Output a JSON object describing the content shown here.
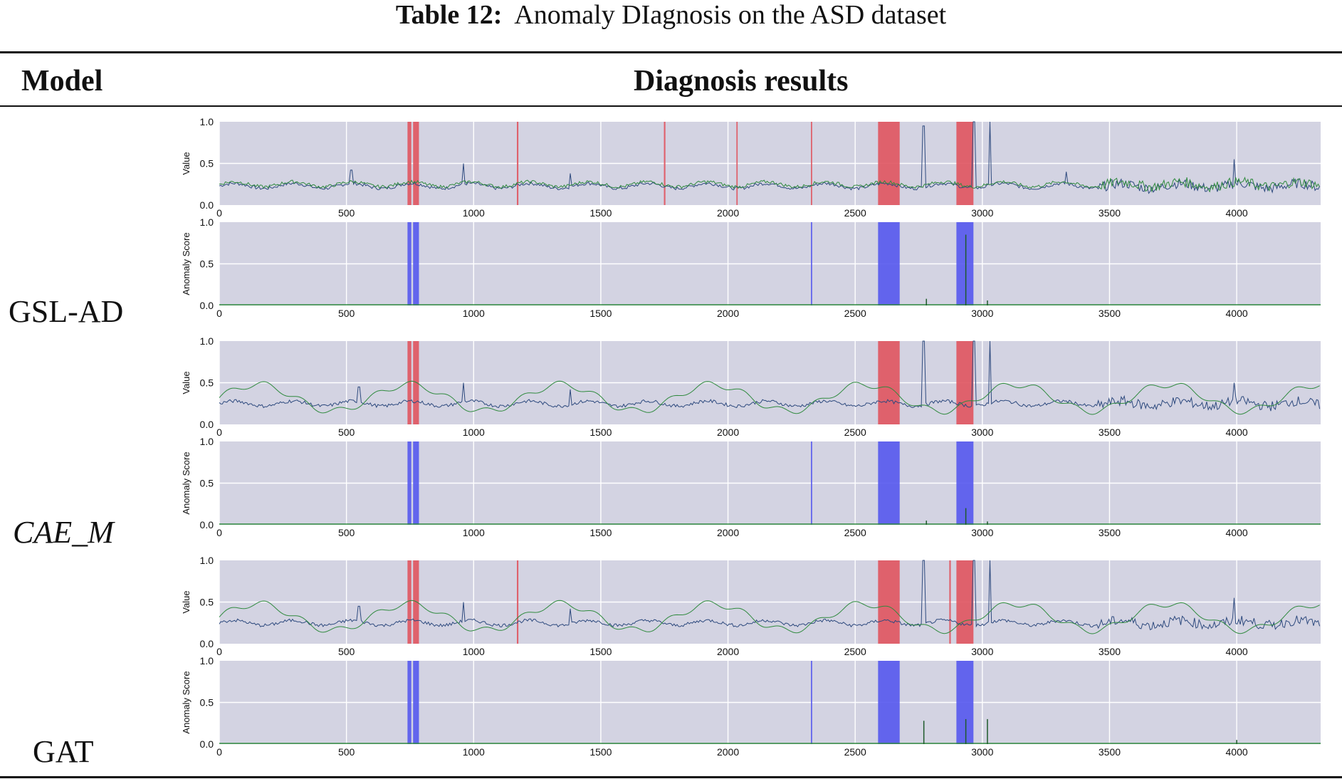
{
  "caption": {
    "bold": "Table 12:",
    "text": "Anomaly DIagnosis on the ASD dataset"
  },
  "headers": {
    "model": "Model",
    "results": "Diagnosis results"
  },
  "models": [
    {
      "name": "GSL-AD",
      "italic": false
    },
    {
      "name": "CAE_M",
      "italic": true
    },
    {
      "name": "GAT",
      "italic": false
    }
  ],
  "colors": {
    "panel_bg": "#d3d3e2",
    "grid": "#ffffff",
    "truth_band": "#e0545f",
    "pred_band": "#5558ee",
    "series_blue": "#2e4a7e",
    "series_green": "#2f8a3e"
  },
  "chart_data": [
    {
      "type": "line",
      "model": "GSL-AD",
      "panel": "value",
      "ylabel": "Value",
      "xlim": [
        0,
        4330
      ],
      "ylim": [
        0,
        1
      ],
      "xticks": [
        0,
        500,
        1000,
        1500,
        2000,
        2500,
        3000,
        3500,
        4000
      ],
      "yticks": [
        "0.0",
        "0.5",
        "1.0"
      ],
      "bands": [
        [
          740,
          755
        ],
        [
          762,
          785
        ],
        [
          1170,
          1176
        ],
        [
          1748,
          1754
        ],
        [
          2033,
          2038
        ],
        [
          2326,
          2331
        ],
        [
          2590,
          2675
        ],
        [
          2898,
          2965
        ]
      ],
      "series": [
        {
          "name": "input",
          "color": "#2e4a7e",
          "baseline": 0.23
        },
        {
          "name": "reconstruction",
          "color": "#2f8a3e",
          "baseline": 0.25
        }
      ],
      "spikes": [
        [
          520,
          0.42
        ],
        [
          960,
          0.5
        ],
        [
          1380,
          0.38
        ],
        [
          2770,
          0.95
        ],
        [
          2965,
          1.0
        ],
        [
          3030,
          1.0
        ],
        [
          3330,
          0.4
        ],
        [
          3990,
          0.55
        ]
      ]
    },
    {
      "type": "area",
      "model": "GSL-AD",
      "panel": "score",
      "ylabel": "Anomaly Score",
      "xlim": [
        0,
        4330
      ],
      "ylim": [
        0,
        1
      ],
      "xticks": [
        0,
        500,
        1000,
        1500,
        2000,
        2500,
        3000,
        3500,
        4000
      ],
      "yticks": [
        "0.0",
        "0.5",
        "1.0"
      ],
      "bands": [
        [
          740,
          755
        ],
        [
          762,
          785
        ],
        [
          2326,
          2331
        ],
        [
          2590,
          2675
        ],
        [
          2898,
          2965
        ]
      ],
      "spikes": [
        [
          2780,
          0.08
        ],
        [
          2935,
          0.85
        ],
        [
          3020,
          0.06
        ]
      ]
    },
    {
      "type": "line",
      "model": "CAE_M",
      "panel": "value",
      "ylabel": "Value",
      "xlim": [
        0,
        4330
      ],
      "ylim": [
        0,
        1
      ],
      "xticks": [
        0,
        500,
        1000,
        1500,
        2000,
        2500,
        3000,
        3500,
        4000
      ],
      "yticks": [
        "0.0",
        "0.5",
        "1.0"
      ],
      "bands": [
        [
          740,
          755
        ],
        [
          762,
          785
        ],
        [
          2590,
          2675
        ],
        [
          2898,
          2965
        ]
      ],
      "series": [
        {
          "name": "input",
          "color": "#2e4a7e",
          "baseline": 0.25
        },
        {
          "name": "reconstruction",
          "color": "#2f8a3e",
          "baseline": 0.35
        }
      ],
      "spikes": [
        [
          550,
          0.45
        ],
        [
          960,
          0.5
        ],
        [
          1380,
          0.42
        ],
        [
          2770,
          1.0
        ],
        [
          2965,
          1.0
        ],
        [
          3030,
          1.0
        ],
        [
          3990,
          0.5
        ]
      ]
    },
    {
      "type": "area",
      "model": "CAE_M",
      "panel": "score",
      "ylabel": "Anomaly Score",
      "xlim": [
        0,
        4330
      ],
      "ylim": [
        0,
        1
      ],
      "xticks": [
        0,
        500,
        1000,
        1500,
        2000,
        2500,
        3000,
        3500,
        4000
      ],
      "yticks": [
        "0.0",
        "0.5",
        "1.0"
      ],
      "bands": [
        [
          740,
          755
        ],
        [
          762,
          785
        ],
        [
          2326,
          2331
        ],
        [
          2590,
          2675
        ],
        [
          2898,
          2965
        ]
      ],
      "spikes": [
        [
          2780,
          0.05
        ],
        [
          2935,
          0.2
        ],
        [
          3020,
          0.04
        ]
      ]
    },
    {
      "type": "line",
      "model": "GAT",
      "panel": "value",
      "ylabel": "Value",
      "xlim": [
        0,
        4330
      ],
      "ylim": [
        0,
        1
      ],
      "xticks": [
        0,
        500,
        1000,
        1500,
        2000,
        2500,
        3000,
        3500,
        4000
      ],
      "yticks": [
        "0.0",
        "0.5",
        "1.0"
      ],
      "bands": [
        [
          740,
          755
        ],
        [
          762,
          785
        ],
        [
          1170,
          1176
        ],
        [
          2590,
          2675
        ],
        [
          2870,
          2876
        ],
        [
          2898,
          2965
        ]
      ],
      "series": [
        {
          "name": "input",
          "color": "#2e4a7e",
          "baseline": 0.25
        },
        {
          "name": "reconstruction",
          "color": "#2f8a3e",
          "baseline": 0.35
        }
      ],
      "spikes": [
        [
          550,
          0.45
        ],
        [
          960,
          0.5
        ],
        [
          1380,
          0.42
        ],
        [
          2770,
          1.0
        ],
        [
          2965,
          1.0
        ],
        [
          3030,
          1.0
        ],
        [
          3990,
          0.55
        ]
      ]
    },
    {
      "type": "area",
      "model": "GAT",
      "panel": "score",
      "ylabel": "Anomaly Score",
      "xlim": [
        0,
        4330
      ],
      "ylim": [
        0,
        1
      ],
      "xticks": [
        0,
        500,
        1000,
        1500,
        2000,
        2500,
        3000,
        3500,
        4000
      ],
      "yticks": [
        "0.0",
        "0.5",
        "1.0"
      ],
      "bands": [
        [
          740,
          755
        ],
        [
          762,
          785
        ],
        [
          2326,
          2331
        ],
        [
          2590,
          2675
        ],
        [
          2898,
          2965
        ]
      ],
      "spikes": [
        [
          2770,
          0.28
        ],
        [
          2935,
          0.3
        ],
        [
          3020,
          0.3
        ],
        [
          4000,
          0.05
        ]
      ]
    }
  ]
}
